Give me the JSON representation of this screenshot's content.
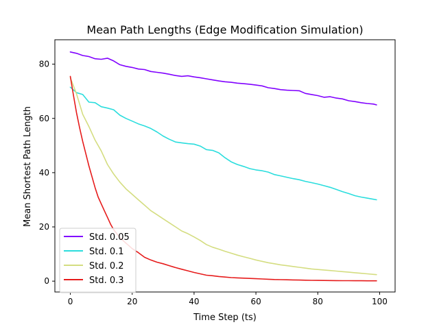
{
  "chart_data": {
    "type": "line",
    "title": "Mean Path Lengths (Edge Modification Simulation)",
    "xlabel": "Time Step (ts)",
    "ylabel": "Mean Shortest Path Length",
    "xlim": [
      -5,
      105
    ],
    "ylim": [
      -4,
      89
    ],
    "xticks": [
      0,
      20,
      40,
      60,
      80,
      100
    ],
    "yticks": [
      0,
      20,
      40,
      60,
      80
    ],
    "grid": false,
    "legend_position": "lower-left",
    "series": [
      {
        "name": "Std. 0.05",
        "color": "#8000ff",
        "x": [
          0,
          2,
          4,
          6,
          8,
          10,
          12,
          14,
          16,
          18,
          20,
          22,
          24,
          26,
          28,
          30,
          32,
          34,
          36,
          38,
          40,
          42,
          44,
          46,
          48,
          50,
          52,
          54,
          56,
          58,
          60,
          62,
          64,
          66,
          68,
          70,
          72,
          74,
          76,
          78,
          80,
          82,
          84,
          86,
          88,
          90,
          92,
          94,
          96,
          98,
          99
        ],
        "y": [
          84.5,
          84.0,
          83.2,
          82.8,
          82.0,
          81.8,
          82.2,
          81.2,
          79.8,
          79.2,
          78.8,
          78.2,
          78.0,
          77.3,
          77.0,
          76.7,
          76.3,
          75.8,
          75.5,
          75.7,
          75.3,
          75.0,
          74.6,
          74.2,
          73.8,
          73.5,
          73.3,
          73.0,
          72.8,
          72.6,
          72.3,
          72.0,
          71.3,
          71.0,
          70.6,
          70.4,
          70.3,
          70.2,
          69.2,
          68.8,
          68.4,
          67.8,
          68.0,
          67.5,
          67.2,
          66.5,
          66.2,
          65.8,
          65.5,
          65.3,
          65.0
        ]
      },
      {
        "name": "Std. 0.1",
        "color": "#2adddd",
        "x": [
          0,
          2,
          4,
          6,
          8,
          10,
          12,
          14,
          16,
          18,
          20,
          22,
          24,
          26,
          28,
          30,
          32,
          34,
          36,
          38,
          40,
          42,
          44,
          46,
          48,
          50,
          52,
          54,
          56,
          58,
          60,
          62,
          64,
          66,
          68,
          70,
          72,
          74,
          76,
          78,
          80,
          82,
          84,
          86,
          88,
          90,
          92,
          94,
          96,
          98,
          99
        ],
        "y": [
          71.5,
          69.5,
          68.8,
          66.0,
          65.8,
          64.3,
          63.8,
          63.2,
          61.2,
          60.0,
          59.0,
          58.0,
          57.2,
          56.3,
          55.0,
          53.5,
          52.3,
          51.3,
          51.0,
          50.7,
          50.5,
          49.8,
          48.5,
          48.2,
          47.3,
          45.5,
          44.0,
          43.0,
          42.3,
          41.5,
          41.0,
          40.7,
          40.2,
          39.3,
          38.8,
          38.3,
          37.8,
          37.4,
          36.8,
          36.3,
          35.8,
          35.2,
          34.6,
          33.8,
          33.0,
          32.3,
          31.5,
          31.0,
          30.6,
          30.2,
          30.0
        ]
      },
      {
        "name": "Std. 0.2",
        "color": "#d4dd80",
        "x": [
          0,
          2,
          4,
          6,
          8,
          10,
          12,
          14,
          16,
          18,
          20,
          22,
          24,
          26,
          28,
          30,
          32,
          34,
          36,
          38,
          40,
          42,
          44,
          46,
          48,
          50,
          52,
          54,
          56,
          58,
          60,
          62,
          64,
          66,
          68,
          70,
          72,
          74,
          76,
          78,
          80,
          82,
          84,
          86,
          88,
          90,
          92,
          94,
          96,
          98,
          99
        ],
        "y": [
          75.0,
          69.0,
          61.5,
          57.0,
          52.0,
          48.0,
          43.0,
          39.5,
          36.5,
          34.0,
          32.0,
          30.0,
          28.0,
          26.0,
          24.5,
          23.0,
          21.5,
          20.0,
          18.5,
          17.5,
          16.3,
          15.0,
          13.5,
          12.5,
          11.8,
          11.0,
          10.3,
          9.6,
          9.0,
          8.4,
          7.8,
          7.3,
          6.8,
          6.4,
          6.0,
          5.7,
          5.4,
          5.1,
          4.8,
          4.5,
          4.3,
          4.1,
          3.9,
          3.7,
          3.5,
          3.3,
          3.1,
          2.9,
          2.7,
          2.5,
          2.4
        ]
      },
      {
        "name": "Std. 0.3",
        "color": "#e61a1a",
        "x": [
          0,
          1,
          2,
          3,
          4,
          5,
          6,
          7,
          8,
          9,
          10,
          11,
          12,
          13,
          14,
          15,
          16,
          17,
          18,
          19,
          20,
          22,
          24,
          26,
          28,
          30,
          32,
          34,
          36,
          38,
          40,
          42,
          44,
          46,
          48,
          50,
          52,
          54,
          56,
          58,
          60,
          62,
          64,
          66,
          68,
          70,
          72,
          74,
          76,
          78,
          80,
          82,
          84,
          86,
          88,
          90,
          92,
          94,
          96,
          98,
          99
        ],
        "y": [
          75.5,
          68.5,
          62.0,
          56.5,
          51.5,
          47.0,
          42.5,
          38.5,
          34.5,
          31.0,
          28.5,
          26.0,
          23.5,
          21.0,
          19.0,
          17.5,
          16.0,
          15.0,
          14.0,
          13.0,
          12.0,
          10.5,
          8.8,
          7.8,
          7.0,
          6.4,
          5.7,
          5.0,
          4.4,
          3.8,
          3.2,
          2.7,
          2.2,
          2.0,
          1.7,
          1.5,
          1.3,
          1.2,
          1.1,
          1.0,
          0.9,
          0.8,
          0.7,
          0.6,
          0.55,
          0.5,
          0.45,
          0.4,
          0.35,
          0.3,
          0.28,
          0.25,
          0.22,
          0.2,
          0.18,
          0.16,
          0.15,
          0.14,
          0.13,
          0.12,
          0.12
        ]
      }
    ]
  }
}
